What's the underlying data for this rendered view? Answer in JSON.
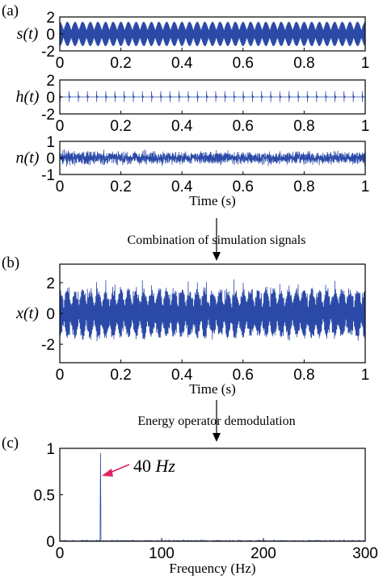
{
  "colors": {
    "signal": "#2b4aa8",
    "arrow_red": "#e0245e",
    "frame": "#000000"
  },
  "panel_labels": {
    "a": "(a)",
    "b": "(b)",
    "c": "(c)"
  },
  "flow_labels": {
    "combine": "Combination of simulation signals",
    "demod": "Energy operator demodulation"
  },
  "chart_data": [
    {
      "type": "line",
      "panel": "a",
      "ylabel": "s(t)",
      "xlim": [
        0,
        1
      ],
      "ylim": [
        -2,
        2
      ],
      "yticks": [
        -2,
        0,
        2
      ],
      "xticks": [
        "0",
        "0.2",
        "0.4",
        "0.6",
        "0.8",
        "1"
      ],
      "xlabel": "",
      "series": [
        {
          "amplitude": 1.6,
          "envelope_freq_hz": 40,
          "modulation_depth": 0.7
        }
      ]
    },
    {
      "type": "line",
      "panel": "a",
      "ylabel": "h(t)",
      "xlim": [
        0,
        1
      ],
      "ylim": [
        -2,
        2
      ],
      "yticks": [
        -2,
        0,
        2
      ],
      "xticks": [
        "0",
        "0.2",
        "0.4",
        "0.6",
        "0.8",
        "1"
      ],
      "xlabel": "",
      "series": [
        {
          "impulse_period_s": 0.03,
          "impulse_amplitude": 1.5
        }
      ]
    },
    {
      "type": "line",
      "panel": "a",
      "ylabel": "n(t)",
      "xlim": [
        0,
        1
      ],
      "ylim": [
        -1,
        1
      ],
      "yticks": [
        -1,
        0,
        1
      ],
      "xticks": [
        "0",
        "0.2",
        "0.4",
        "0.6",
        "0.8",
        "1"
      ],
      "xlabel": "Time (s)",
      "series": [
        {
          "noise_amplitude": 0.35
        }
      ]
    },
    {
      "type": "line",
      "panel": "b",
      "ylabel": "x(t)",
      "xlim": [
        0,
        1
      ],
      "ylim": [
        -3.2,
        3.2
      ],
      "yticks": [
        -2,
        0,
        2
      ],
      "xticks": [
        "0",
        "0.2",
        "0.4",
        "0.6",
        "0.8",
        "1"
      ],
      "xlabel": "Time (s)",
      "series": [
        {
          "composition": "s(t) + h(t) + n(t)"
        }
      ]
    },
    {
      "type": "line",
      "panel": "c",
      "ylabel": "",
      "xlim": [
        0,
        300
      ],
      "ylim": [
        0,
        1
      ],
      "yticks": [
        0,
        0.5,
        1
      ],
      "xticks": [
        "0",
        "100",
        "200",
        "300"
      ],
      "xlabel": "Frequency  (Hz)",
      "annotation": {
        "text_num": "40 ",
        "text_unit": "Hz",
        "x": 40,
        "y": 0.95
      },
      "series": [
        {
          "peak_freq_hz": 40,
          "peak_value": 0.95,
          "baseline": 0.01
        }
      ]
    }
  ]
}
